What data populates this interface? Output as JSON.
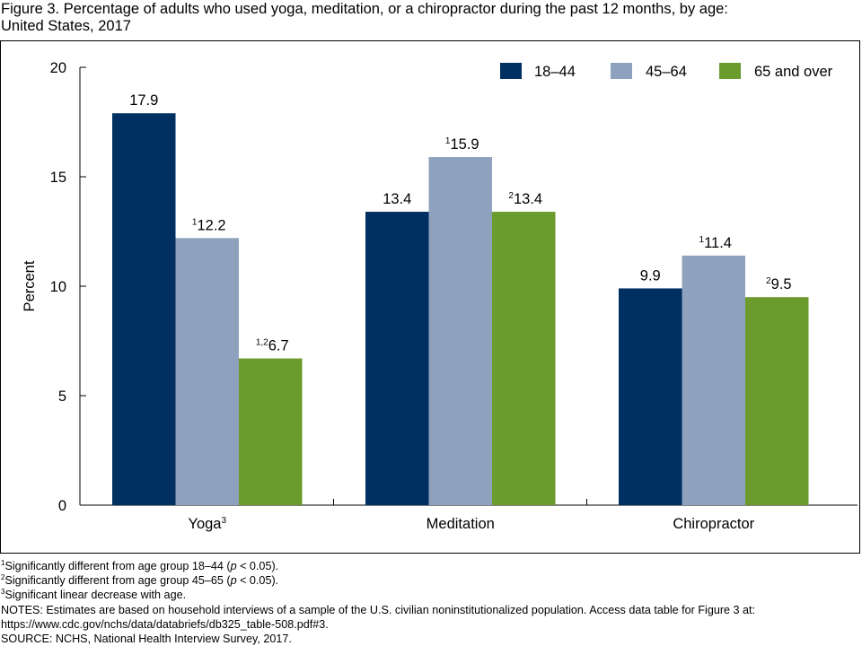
{
  "title_lines": [
    "Figure 3. Percentage of adults who used yoga, meditation, or a chiropractor during the past 12 months, by age:",
    "United States, 2017"
  ],
  "chart_data": {
    "type": "bar",
    "categories": [
      "Yoga",
      "Meditation",
      "Chiropractor"
    ],
    "category_superscripts": [
      "3",
      "",
      ""
    ],
    "ylabel": "Percent",
    "xlabel": "",
    "ylim": [
      0,
      20
    ],
    "yticks": [
      "0",
      "5",
      "10",
      "15",
      "20"
    ],
    "grid": false,
    "legend_position": "top-right",
    "series": [
      {
        "name": "18–44",
        "color": "#002f61",
        "values": [
          17.9,
          13.4,
          9.9
        ],
        "labels": [
          "17.9",
          "13.4",
          "9.9"
        ],
        "label_superscripts": [
          "",
          "",
          ""
        ]
      },
      {
        "name": "45–64",
        "color": "#8fa2bd",
        "values": [
          12.2,
          15.9,
          11.4
        ],
        "labels": [
          "12.2",
          "15.9",
          "11.4"
        ],
        "label_superscripts": [
          "1",
          "1",
          "1"
        ]
      },
      {
        "name": "65 and over",
        "color": "#6b9a2d",
        "values": [
          6.7,
          13.4,
          9.5
        ],
        "labels": [
          "6.7",
          "13.4",
          "9.5"
        ],
        "label_superscripts": [
          "1,2",
          "2",
          "2"
        ]
      }
    ]
  },
  "footnotes": [
    {
      "sup": "1",
      "pre": "Significantly different from age group 18–44 (",
      "italic": "p",
      "post": " < 0.05)."
    },
    {
      "sup": "2",
      "pre": "Significantly different from age group 45–65 (",
      "italic": "p",
      "post": " < 0.05)."
    },
    {
      "sup": "3",
      "pre": "Significant linear decrease with age.",
      "italic": "",
      "post": ""
    }
  ],
  "notes_lines": [
    "NOTES: Estimates are based on household interviews of a sample of the U.S. civilian noninstitutionalized population. Access data table for Figure 3 at:",
    "https://www.cdc.gov/nchs/data/databriefs/db325_table-508.pdf#3.",
    "SOURCE: NCHS, National Health Interview Survey, 2017."
  ]
}
